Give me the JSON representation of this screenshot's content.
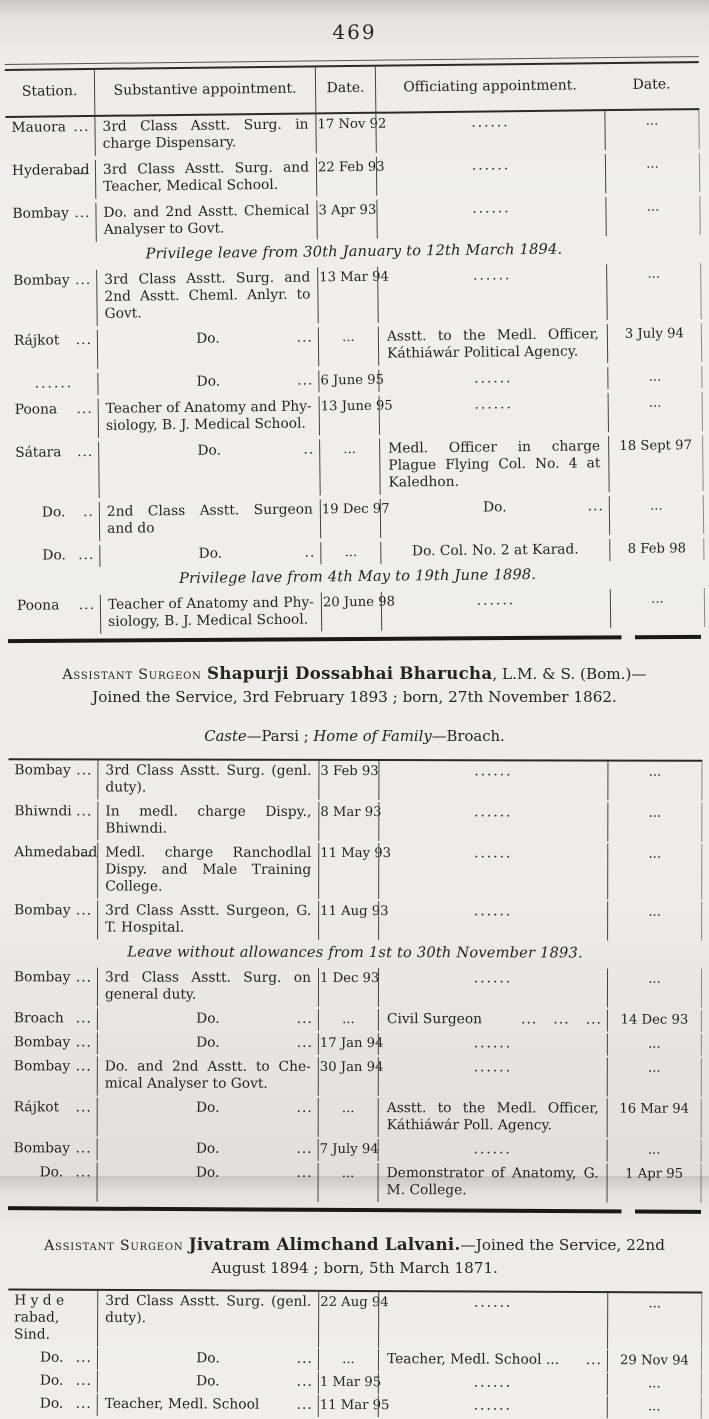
{
  "page": {
    "number": "469"
  },
  "table_header": {
    "station": "Station.",
    "substantive": "Substantive appointment.",
    "date1": "Date.",
    "officiating": "Officiating appointment.",
    "date2": "Date."
  },
  "sections": [
    {
      "type": "table",
      "variant": "t1",
      "show_header": true,
      "double_top": true,
      "rows": [
        {
          "station": "Mauora",
          "station_dots": "...",
          "subst": "3rd Class Asstt. Surg. in charge Dispensary.",
          "date1": "17 Nov 92",
          "offic": "......",
          "date2": "..."
        },
        {
          "station": "Hyderabad",
          "station_dots": "...",
          "subst": "3rd Class Asstt. Surg. and Teacher, Medical School.",
          "date1": "22 Feb 93",
          "offic": "......",
          "date2": "..."
        },
        {
          "station": "Bombay",
          "station_dots": "...",
          "subst": "Do. and 2nd Asstt. Chemical Analyser to Govt.",
          "date1": "3 Apr 93",
          "offic": "......",
          "date2": "..."
        },
        {
          "note": "Privilege leave from 30th January to 12th March 1894."
        },
        {
          "station": "Bombay",
          "station_dots": "...",
          "subst": "3rd Class Asstt. Surg. and 2nd Asstt. Cheml. Anlyr. to Govt.",
          "date1": "13 Mar 94",
          "offic": "......",
          "date2": "..."
        },
        {
          "station": "Rájkot",
          "station_dots": "...",
          "subst": "Do.",
          "subst_dots": "...",
          "date1": "...",
          "offic": "Asstt. to the Medl. Officer, Káthiáwár Political Agency.",
          "date2": "3 July 94"
        },
        {
          "station": "......",
          "subst": "Do.",
          "subst_dots": "...",
          "date1": "6 June 95",
          "offic": "......",
          "date2": "..."
        },
        {
          "station": "Poona",
          "station_dots": "...",
          "subst": "Teacher of Anatomy and Phy-siology, B. J. Medical School.",
          "date1": "13 June 95",
          "offic": "......",
          "date2": "..."
        },
        {
          "station": "Sátara",
          "station_dots": "...",
          "subst": "Do.",
          "subst_dots": "..",
          "date1": "...",
          "offic": "Medl. Officer in charge Plague Flying Col. No. 4 at Kaledhon.",
          "date2": "18 Sept 97"
        },
        {
          "station": "Do.",
          "station_dots": "..",
          "subst": "2nd Class Asstt. Surgeon and do",
          "date1": "19 Dec 97",
          "offic": "Do.",
          "offic_dots": "...",
          "date2": "..."
        },
        {
          "station": "Do.",
          "station_dots": "...",
          "subst": "Do.",
          "subst_dots": "..",
          "date1": "...",
          "offic": "Do.  Col. No. 2 at Karad.",
          "date2": "8 Feb 98"
        },
        {
          "note": "Privilege lave from 4th May to 19th June 1898."
        },
        {
          "station": "Poona",
          "station_dots": "...",
          "subst": "Teacher of Anatomy and Phy-siology, B. J. Medical School.",
          "date1": "20 June 98",
          "offic": "......",
          "date2": "..."
        }
      ]
    },
    {
      "type": "rule",
      "variant": "r1"
    },
    {
      "type": "officer_heading",
      "variant": "",
      "prefix": "Assistant Surgeon",
      "name": "Shapurji Dossabhai Bharucha",
      "suffix": ", L.M. & S. (Bom.)—Joined the Service, 3rd February 1893 ; born, 27th November 1862."
    },
    {
      "type": "caste_line",
      "parts": [
        {
          "text": "Caste",
          "italic": true
        },
        {
          "text": "—Parsi ; ",
          "italic": false
        },
        {
          "text": "Home of Family",
          "italic": true
        },
        {
          "text": "—Broach.",
          "italic": false
        }
      ]
    },
    {
      "type": "table",
      "variant": "t2",
      "show_header": false,
      "double_top": false,
      "rows": [
        {
          "station": "Bombay",
          "station_dots": "...",
          "subst": "3rd Class Asstt. Surg. (genl. duty).",
          "date1": "3 Feb 93",
          "offic": "......",
          "date2": "..."
        },
        {
          "station": "Bhiwndi",
          "station_dots": "...",
          "subst": "In medl. charge Dispy., Bhiwndi.",
          "date1": "8 Mar 93",
          "offic": "......",
          "date2": "..."
        },
        {
          "station": "Ahmedabad",
          "station_dots": "...",
          "subst": "Medl. charge Ranchodlal Dispy. and Male Training College.",
          "date1": "11 May 93",
          "offic": "......",
          "date2": "..."
        },
        {
          "station": "Bombay",
          "station_dots": "...",
          "subst": "3rd Class Asstt. Surgeon, G. T. Hospital.",
          "date1": "11 Aug 93",
          "offic": "......",
          "date2": "..."
        },
        {
          "note": "Leave without allowances from 1st to 30th November 1893."
        },
        {
          "station": "Bombay",
          "station_dots": "...",
          "subst": "3rd Class Asstt. Surg. on general duty.",
          "date1": "1 Dec 93",
          "offic": "......",
          "date2": "..."
        },
        {
          "station": "Broach",
          "station_dots": "...",
          "subst": "Do.",
          "subst_dots": "...",
          "date1": "...",
          "offic": "Civil Surgeon",
          "offic_dots": "...   ...   ...",
          "date2": "14 Dec 93"
        },
        {
          "station": "Bombay",
          "station_dots": "...",
          "subst": "Do.",
          "subst_dots": "...",
          "date1": "17 Jan 94",
          "offic": "......",
          "date2": "..."
        },
        {
          "station": "Bombay",
          "station_dots": "...",
          "subst": "Do. and 2nd Asstt. to Che-mical Analyser to Govt.",
          "date1": "30 Jan 94",
          "offic": "......",
          "date2": "..."
        },
        {
          "station": "Rájkot",
          "station_dots": "...",
          "subst": "Do.",
          "subst_dots": "...",
          "date1": "...",
          "offic": "Asstt. to the Medl. Officer, Káthiáwár Poll. Agency.",
          "date2": "16 Mar 94"
        },
        {
          "station": "Bombay",
          "station_dots": "...",
          "subst": "Do.",
          "subst_dots": "...",
          "date1": "7 July 94",
          "offic": "......",
          "date2": "..."
        },
        {
          "station": "Do.",
          "station_dots": "...",
          "subst": "Do.",
          "subst_dots": "...",
          "date1": "...",
          "offic": "Demonstrator of Anatomy, G. M. College.",
          "date2": "1 Apr 95"
        }
      ]
    },
    {
      "type": "rule",
      "variant": "r2"
    },
    {
      "type": "officer_heading",
      "variant": "",
      "prefix": "Assistant Surgeon",
      "name": "Jivatram Alimchand Lalvani.",
      "suffix": "—Joined the Service, 22nd August 1894 ; born, 5th March 1871."
    },
    {
      "type": "table",
      "variant": "t3",
      "show_header": false,
      "double_top": false,
      "rows": [
        {
          "station": "H y d e rabad, Sind.",
          "subst": "3rd Class Asstt. Surg. (genl. duty).",
          "date1": "22 Aug 94",
          "offic": "......",
          "date2": "..."
        },
        {
          "station": "Do.",
          "station_dots": "...",
          "subst": "Do.",
          "subst_dots": "...",
          "date1": "...",
          "offic": "Teacher, Medl. School ...",
          "offic_dots": "...",
          "date2": "29 Nov 94"
        },
        {
          "station": "Do.",
          "station_dots": "...",
          "subst": "Do.",
          "subst_dots": "...",
          "date1": "1 Mar 95",
          "offic": "......",
          "date2": "..."
        },
        {
          "station": "Do.",
          "station_dots": "...",
          "subst": "Teacher, Medl. School",
          "subst_dots": "...",
          "date1": "11 Mar 95",
          "offic": "......",
          "date2": "..."
        }
      ]
    }
  ]
}
